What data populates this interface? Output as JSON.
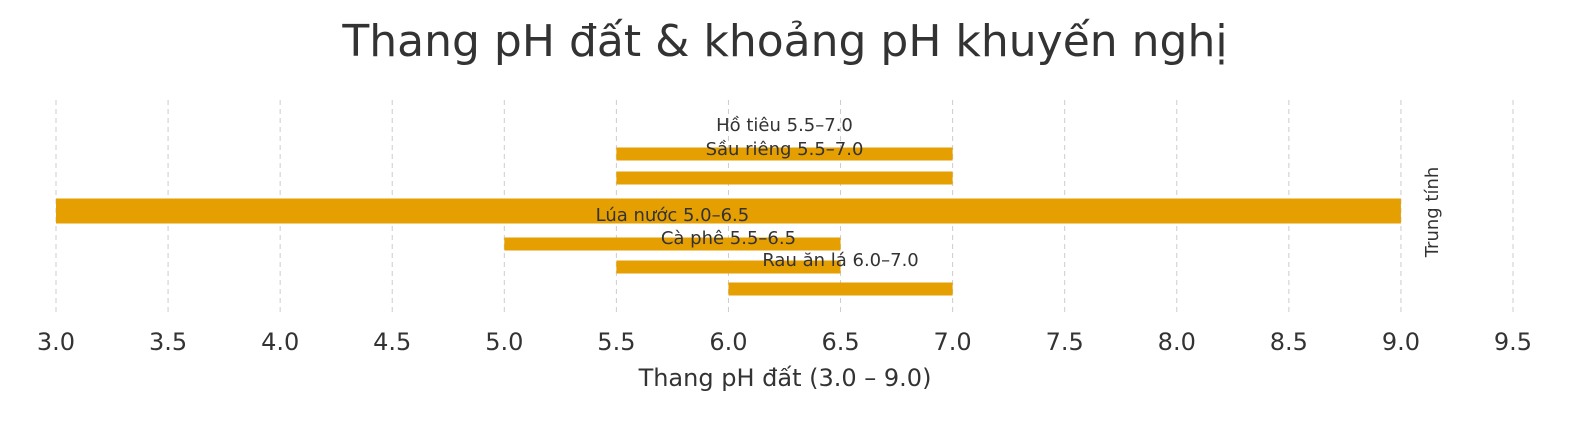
{
  "chart_data": {
    "type": "range_bar",
    "title": "Thang pH đất & khoảng pH khuyến nghị",
    "xlabel": "Thang pH đất (3.0 – 9.0)",
    "annotation": "Trung tính",
    "color": "#e69f00",
    "grid": true,
    "xlim": [
      3.0,
      9.5
    ],
    "xticks": [
      {
        "value": 3,
        "label": "3.0"
      },
      3.5,
      {
        "value": 4,
        "label": "4.0"
      },
      4.5,
      {
        "value": 5,
        "label": "5.0"
      },
      5.5,
      {
        "value": 6,
        "label": "6.0"
      },
      6.5,
      {
        "value": 7,
        "label": "7.0"
      },
      7.5,
      {
        "value": 8,
        "label": "8.0"
      },
      8.5,
      {
        "value": 9,
        "label": "9.0"
      },
      9.5
    ],
    "bars": [
      {
        "label": "Hồ tiêu 5.5–7.0",
        "start": 5.5,
        "end": 7.0
      },
      {
        "label": "Sầu riêng 5.5–7.0",
        "start": 5.5,
        "end": 7.0
      },
      {
        "start": 3.0,
        "end": 9.0
      },
      {
        "label": "Lúa nước 5.0–6.5",
        "start": 5.0,
        "end": 6.5
      },
      {
        "label": "Cà phê 5.5–6.5",
        "start": 5.5,
        "end": 6.5
      },
      {
        "label": "Rau ăn lá 6.0–7.0",
        "start": 6.0,
        "end": 7.0
      }
    ]
  }
}
